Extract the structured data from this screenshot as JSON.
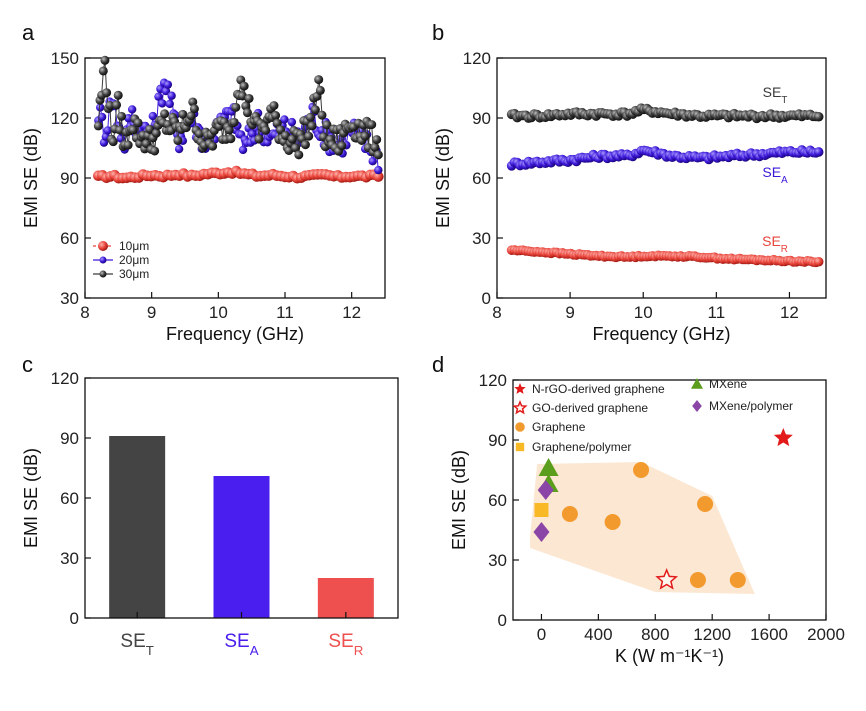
{
  "panels": {
    "a": "a",
    "b": "b",
    "c": "c",
    "d": "d"
  },
  "chart_data": [
    {
      "panel": "a",
      "type": "scatter",
      "xlabel": "Frequency (GHz)",
      "ylabel": "EMI SE (dB)",
      "xlim": [
        8,
        12.5
      ],
      "ylim": [
        30,
        150
      ],
      "xticks": [
        8,
        9,
        10,
        11,
        12
      ],
      "yticks": [
        30,
        60,
        90,
        120,
        150
      ],
      "legend_position": "bottom-left",
      "series": [
        {
          "name": "10μm",
          "color": "#e8443a",
          "x": [
            8.2,
            8.4,
            8.6,
            8.8,
            9.0,
            9.2,
            9.4,
            9.6,
            9.8,
            10.0,
            10.2,
            10.4,
            10.6,
            10.8,
            11.0,
            11.2,
            11.4,
            11.6,
            11.8,
            12.0,
            12.2,
            12.4
          ],
          "y": [
            90.5,
            91,
            90,
            90.8,
            91.5,
            91,
            92,
            91,
            92,
            92.5,
            93,
            92,
            91,
            91.5,
            91,
            90.5,
            91,
            91.5,
            90.5,
            91,
            90.8,
            91
          ]
        },
        {
          "name": "20μm",
          "color": "#3d18d9",
          "x": [
            8.2,
            8.3,
            8.4,
            8.5,
            8.6,
            8.7,
            8.8,
            9.0,
            9.2,
            9.4,
            9.6,
            9.8,
            10.0,
            10.2,
            10.4,
            10.6,
            10.8,
            11.0,
            11.2,
            11.4,
            11.6,
            11.8,
            12.0,
            12.2,
            12.4
          ],
          "y": [
            124,
            112,
            130,
            118,
            108,
            122,
            115,
            112,
            140,
            110,
            120,
            108,
            115,
            122,
            105,
            118,
            110,
            116,
            108,
            122,
            112,
            106,
            114,
            108,
            100
          ]
        },
        {
          "name": "30μm",
          "color": "#3a3a3a",
          "x": [
            8.2,
            8.3,
            8.4,
            8.5,
            8.6,
            8.7,
            8.8,
            9.0,
            9.2,
            9.4,
            9.6,
            9.8,
            10.0,
            10.2,
            10.3,
            10.6,
            10.8,
            11.0,
            11.2,
            11.4,
            11.5,
            11.6,
            11.8,
            12.0,
            12.2,
            12.4
          ],
          "y": [
            118,
            148,
            110,
            125,
            105,
            120,
            112,
            108,
            118,
            112,
            124,
            106,
            114,
            116,
            139,
            112,
            122,
            110,
            108,
            118,
            136,
            110,
            108,
            118,
            112,
            108
          ]
        }
      ]
    },
    {
      "panel": "b",
      "type": "scatter",
      "xlabel": "Frequency (GHz)",
      "ylabel": "EMI SE (dB)",
      "xlim": [
        8,
        12.5
      ],
      "ylim": [
        0,
        120
      ],
      "xticks": [
        8,
        9,
        10,
        11,
        12
      ],
      "yticks": [
        0,
        30,
        60,
        90,
        120
      ],
      "series": [
        {
          "name": "SE_T",
          "color": "#3a3a3a",
          "x": [
            8.2,
            8.6,
            9.0,
            9.4,
            9.8,
            10.0,
            10.4,
            10.8,
            11.2,
            11.6,
            12.0,
            12.4
          ],
          "y": [
            91,
            91,
            92,
            92,
            92,
            94,
            92,
            91,
            91,
            91,
            91,
            91
          ]
        },
        {
          "name": "SE_A",
          "color": "#3d18d9",
          "x": [
            8.2,
            8.6,
            9.0,
            9.4,
            9.8,
            10.0,
            10.4,
            10.8,
            11.2,
            11.6,
            12.0,
            12.4
          ],
          "y": [
            67,
            68,
            69,
            71,
            71,
            74,
            71,
            70,
            71,
            72,
            73,
            73
          ]
        },
        {
          "name": "SE_R",
          "color": "#e8443a",
          "x": [
            8.2,
            8.6,
            9.0,
            9.4,
            9.8,
            10.0,
            10.4,
            10.8,
            11.2,
            11.6,
            12.0,
            12.4
          ],
          "y": [
            24,
            23,
            22,
            21,
            20.5,
            21,
            21,
            20.5,
            19.5,
            19,
            18.5,
            18
          ]
        }
      ]
    },
    {
      "panel": "c",
      "type": "bar",
      "ylabel": "EMI SE (dB)",
      "ylim": [
        0,
        120
      ],
      "yticks": [
        0,
        30,
        60,
        90,
        120
      ],
      "categories": [
        "SE_T",
        "SE_A",
        "SE_R"
      ],
      "values": [
        91,
        71,
        20
      ],
      "colors": [
        "#444444",
        "#4a1eee",
        "#ee4f4f"
      ]
    },
    {
      "panel": "d",
      "type": "scatter",
      "xlabel": "K (W m⁻¹K⁻¹)",
      "ylabel": "EMI SE (dB)",
      "xlim": [
        -200,
        2000
      ],
      "ylim": [
        0,
        120
      ],
      "xticks": [
        0,
        400,
        800,
        1200,
        1600,
        2000
      ],
      "yticks": [
        0,
        30,
        60,
        90,
        120
      ],
      "legend_position": "top-left",
      "series": [
        {
          "name": "N-rGO-derived graphene",
          "marker": "star",
          "color": "#e21a1a",
          "points": [
            [
              1700,
              91
            ]
          ]
        },
        {
          "name": "GO-derived graphene",
          "marker": "star-open",
          "color": "#e21a1a",
          "points": [
            [
              880,
              20
            ]
          ]
        },
        {
          "name": "Graphene",
          "marker": "circle",
          "color": "#f39a2e",
          "points": [
            [
              200,
              53
            ],
            [
              500,
              49
            ],
            [
              700,
              75
            ],
            [
              1150,
              58
            ],
            [
              1100,
              20
            ],
            [
              1380,
              20
            ]
          ]
        },
        {
          "name": "Graphene/polymer",
          "marker": "square",
          "color": "#f9b826",
          "points": [
            [
              0,
              55
            ]
          ]
        },
        {
          "name": "MXene",
          "marker": "triangle",
          "color": "#5b9e1e",
          "points": [
            [
              50,
              76
            ],
            [
              50,
              68
            ]
          ]
        },
        {
          "name": "MXene/polymer",
          "marker": "diamond",
          "color": "#8b45a6",
          "points": [
            [
              30,
              65
            ],
            [
              0,
              44
            ]
          ]
        }
      ],
      "shaded_region_color": "#fce7d2"
    }
  ]
}
